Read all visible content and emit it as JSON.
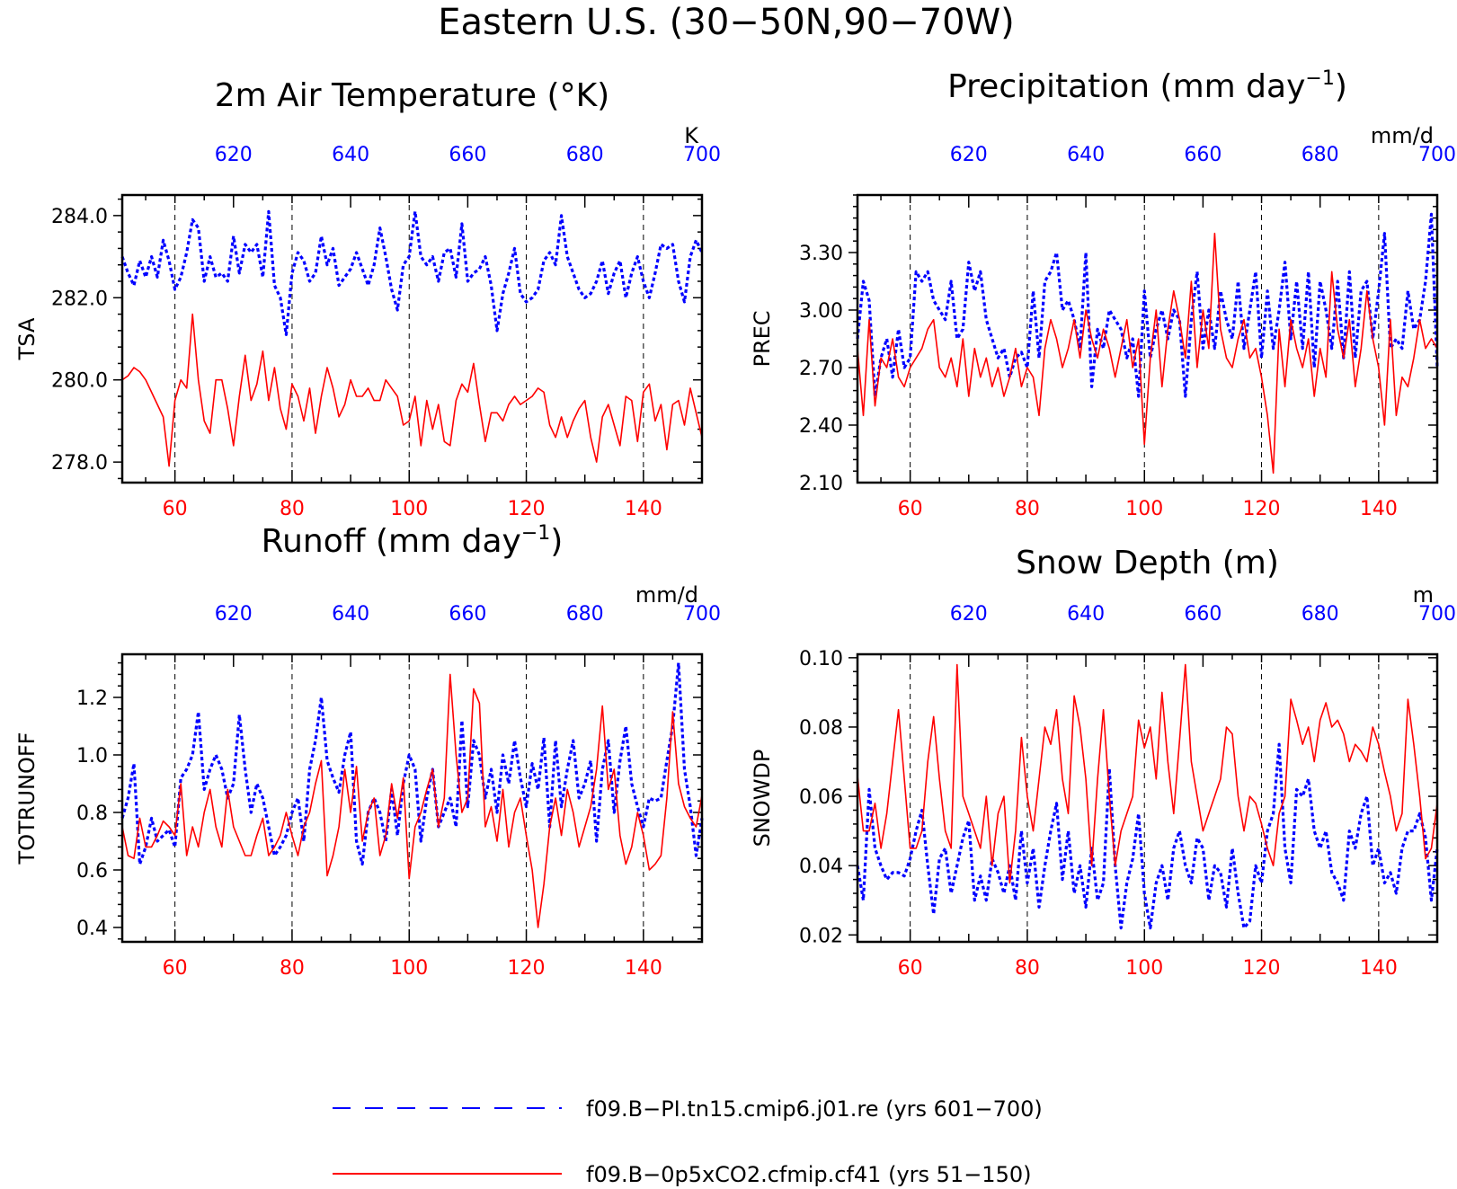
{
  "title": "Eastern U.S. (30−50N,90−70W)",
  "legend": {
    "placement": "bottom",
    "entries": [
      {
        "label": "f09.B−PI.tn15.cmip6.j01.re (yrs 601−700)",
        "color": "#0000ff",
        "style": "dashed"
      },
      {
        "label": "f09.B−0p5xCO2.cfmip.cf41 (yrs 51−150)",
        "color": "#ff0000",
        "style": "solid"
      }
    ]
  },
  "colors": {
    "series_pi": "#0000ff",
    "series_co2": "#ff0000",
    "axis": "#000000"
  },
  "chart_data": [
    {
      "type": "line",
      "title": "2m Air Temperature (°K)",
      "title_main": "2m Air Temperature (°K)",
      "title_sup": "",
      "title_tail": "",
      "ylabel": "TSA",
      "units": "K",
      "ylim": [
        277.5,
        284.5
      ],
      "yticks": [
        278.0,
        280.0,
        282.0,
        284.0
      ],
      "ytick_labels": [
        "278.0",
        "280.0",
        "282.0",
        "284.0"
      ],
      "x_bottom": {
        "range": [
          51,
          150
        ],
        "ticks": [
          60,
          80,
          100,
          120,
          140
        ],
        "color": "#ff0000"
      },
      "x_top": {
        "range": [
          601,
          700
        ],
        "ticks": [
          620,
          640,
          660,
          680,
          700
        ],
        "color": "#0000ff"
      },
      "grid": "dashed vertical",
      "series": [
        {
          "values": [
            283.0,
            282.6,
            282.3,
            282.9,
            282.5,
            283.0,
            282.5,
            283.4,
            282.9,
            282.2,
            282.5,
            283.1,
            283.9,
            283.7,
            282.4,
            283.0,
            282.5,
            282.6,
            282.4,
            283.5,
            282.6,
            283.3,
            283.1,
            283.3,
            282.5,
            284.1,
            282.3,
            282.0,
            281.1,
            282.6,
            283.1,
            282.9,
            282.4,
            282.6,
            283.5,
            282.8,
            283.2,
            282.3,
            282.5,
            282.7,
            283.1,
            282.7,
            282.3,
            282.8,
            283.7,
            283.0,
            282.2,
            281.7,
            282.8,
            283.0,
            284.1,
            283.0,
            282.8,
            283.0,
            282.4,
            283.1,
            283.2,
            282.5,
            283.8,
            282.4,
            282.6,
            282.7,
            283.0,
            282.3,
            281.2,
            282.1,
            282.6,
            283.2,
            282.1,
            281.9,
            282.0,
            282.2,
            282.9,
            283.1,
            282.8,
            284.0,
            283.0,
            282.6,
            282.2,
            282.0,
            282.1,
            282.4,
            282.9,
            282.1,
            282.6,
            282.9,
            282.0,
            282.6,
            283.0,
            282.4,
            282.0,
            282.6,
            283.3,
            283.2,
            283.3,
            282.4,
            281.9,
            283.0,
            283.4,
            283.1
          ]
        },
        {
          "values": [
            280.0,
            280.1,
            280.3,
            280.2,
            280.0,
            279.7,
            279.4,
            279.1,
            277.9,
            279.5,
            280.0,
            279.8,
            281.6,
            280.0,
            279.0,
            278.7,
            280.0,
            280.0,
            279.3,
            278.4,
            279.6,
            280.6,
            279.5,
            279.9,
            280.7,
            279.5,
            280.3,
            279.3,
            278.8,
            279.9,
            279.6,
            279.0,
            279.8,
            278.7,
            279.6,
            280.3,
            279.8,
            279.1,
            279.4,
            280.0,
            279.6,
            279.6,
            279.8,
            279.5,
            279.5,
            280.0,
            279.8,
            279.6,
            278.9,
            279.0,
            279.6,
            278.4,
            279.5,
            278.8,
            279.4,
            278.5,
            278.4,
            279.5,
            279.9,
            279.7,
            280.4,
            279.4,
            278.5,
            279.2,
            279.2,
            279.0,
            279.4,
            279.6,
            279.4,
            279.5,
            279.6,
            279.8,
            279.7,
            278.9,
            278.6,
            279.1,
            278.6,
            279.0,
            279.3,
            279.5,
            278.6,
            278.0,
            279.1,
            279.4,
            278.9,
            278.4,
            279.6,
            279.5,
            278.5,
            279.7,
            279.9,
            279.0,
            279.4,
            278.3,
            279.4,
            279.5,
            278.9,
            279.8,
            279.2,
            278.6
          ]
        }
      ]
    },
    {
      "type": "line",
      "title": "Precipitation (mm day⁻¹)",
      "title_main": "Precipitation (mm day",
      "title_sup": "−1",
      "title_tail": ")",
      "ylabel": "PREC",
      "units": "mm/d",
      "ylim": [
        2.1,
        3.6
      ],
      "yticks": [
        2.1,
        2.4,
        2.7,
        3.0,
        3.3
      ],
      "ytick_labels": [
        "2.10",
        "2.40",
        "2.70",
        "3.00",
        "3.30"
      ],
      "x_bottom": {
        "range": [
          51,
          150
        ],
        "ticks": [
          60,
          80,
          100,
          120,
          140
        ],
        "color": "#ff0000"
      },
      "x_top": {
        "range": [
          601,
          700
        ],
        "ticks": [
          620,
          640,
          660,
          680,
          700
        ],
        "color": "#0000ff"
      },
      "grid": "dashed vertical",
      "series": [
        {
          "values": [
            2.85,
            3.15,
            3.05,
            2.55,
            2.75,
            2.85,
            2.65,
            2.9,
            2.7,
            2.75,
            3.2,
            3.15,
            3.2,
            3.05,
            3.0,
            2.95,
            3.15,
            2.85,
            2.9,
            3.25,
            3.1,
            3.2,
            2.95,
            2.85,
            2.75,
            2.8,
            2.65,
            2.75,
            2.78,
            2.7,
            3.1,
            2.75,
            3.15,
            3.2,
            3.3,
            3.0,
            3.05,
            2.95,
            2.8,
            3.3,
            2.6,
            2.9,
            2.8,
            3.0,
            2.95,
            2.9,
            2.75,
            2.85,
            2.55,
            3.1,
            2.75,
            2.9,
            3.0,
            2.85,
            3.0,
            2.95,
            2.55,
            2.95,
            3.2,
            2.8,
            3.0,
            2.8,
            3.1,
            2.95,
            2.85,
            3.15,
            2.8,
            3.0,
            3.2,
            2.75,
            3.1,
            2.8,
            3.0,
            3.25,
            2.85,
            3.15,
            2.8,
            3.2,
            2.7,
            3.15,
            3.0,
            2.8,
            3.15,
            2.75,
            3.2,
            2.75,
            3.1,
            3.15,
            2.85,
            3.1,
            3.4,
            2.8,
            2.85,
            2.8,
            3.1,
            2.9,
            2.95,
            3.15,
            3.5,
            2.7
          ]
        },
        {
          "values": [
            2.8,
            2.45,
            2.95,
            2.5,
            2.75,
            2.7,
            2.85,
            2.65,
            2.6,
            2.7,
            2.75,
            2.8,
            2.9,
            2.95,
            2.7,
            2.65,
            2.75,
            2.6,
            2.85,
            2.55,
            2.8,
            2.65,
            2.75,
            2.6,
            2.7,
            2.55,
            2.65,
            2.8,
            2.6,
            2.7,
            2.65,
            2.45,
            2.8,
            2.95,
            2.85,
            2.7,
            2.8,
            2.95,
            2.75,
            3.0,
            2.85,
            2.75,
            2.9,
            2.8,
            2.65,
            2.8,
            2.95,
            2.7,
            2.85,
            2.3,
            2.75,
            3.0,
            2.6,
            2.9,
            3.1,
            2.95,
            2.75,
            3.15,
            2.7,
            3.0,
            2.8,
            3.4,
            2.9,
            2.75,
            2.7,
            2.85,
            2.95,
            2.75,
            2.8,
            2.65,
            2.45,
            2.15,
            2.9,
            2.6,
            2.95,
            2.8,
            2.7,
            2.85,
            2.55,
            2.8,
            2.65,
            3.2,
            2.9,
            2.75,
            2.95,
            2.6,
            2.8,
            3.1,
            2.85,
            2.7,
            2.4,
            2.95,
            2.45,
            2.65,
            2.6,
            2.75,
            2.95,
            2.8,
            2.85,
            2.8
          ]
        }
      ]
    },
    {
      "type": "line",
      "title": "Runoff (mm day⁻¹)",
      "title_main": "Runoff (mm day",
      "title_sup": "−1",
      "title_tail": ")",
      "ylabel": "TOTRUNOFF",
      "units": "mm/d",
      "ylim": [
        0.35,
        1.35
      ],
      "yticks": [
        0.4,
        0.6,
        0.8,
        1.0,
        1.2
      ],
      "ytick_labels": [
        "0.4",
        "0.6",
        "0.8",
        "1.0",
        "1.2"
      ],
      "x_bottom": {
        "range": [
          51,
          150
        ],
        "ticks": [
          60,
          80,
          100,
          120,
          140
        ],
        "color": "#ff0000"
      },
      "x_top": {
        "range": [
          601,
          700
        ],
        "ticks": [
          620,
          640,
          660,
          680,
          700
        ],
        "color": "#0000ff"
      },
      "grid": "dashed vertical",
      "series": [
        {
          "values": [
            0.78,
            0.85,
            0.97,
            0.62,
            0.68,
            0.78,
            0.7,
            0.72,
            0.74,
            0.68,
            0.92,
            0.95,
            1.0,
            1.15,
            0.88,
            0.95,
            1.0,
            0.95,
            0.85,
            0.9,
            1.14,
            0.95,
            0.8,
            0.9,
            0.85,
            0.75,
            0.65,
            0.68,
            0.72,
            0.8,
            0.85,
            0.7,
            0.95,
            1.05,
            1.2,
            0.98,
            0.92,
            0.87,
            1.0,
            1.08,
            0.7,
            0.62,
            0.8,
            0.85,
            0.8,
            0.7,
            0.88,
            0.72,
            0.9,
            1.0,
            0.95,
            0.7,
            0.85,
            0.95,
            0.75,
            0.8,
            0.85,
            0.75,
            1.12,
            0.82,
            1.05,
            1.0,
            0.85,
            0.95,
            0.8,
            1.0,
            0.9,
            1.05,
            0.92,
            0.82,
            0.97,
            0.88,
            1.06,
            0.75,
            1.05,
            0.82,
            0.95,
            1.05,
            0.85,
            0.9,
            0.98,
            0.7,
            0.95,
            1.05,
            0.8,
            0.98,
            1.1,
            0.9,
            0.82,
            0.75,
            0.85,
            0.84,
            0.85,
            0.98,
            1.1,
            1.32,
            0.95,
            0.82,
            0.65,
            0.78
          ]
        },
        {
          "values": [
            0.75,
            0.65,
            0.64,
            0.78,
            0.68,
            0.68,
            0.72,
            0.77,
            0.75,
            0.72,
            0.9,
            0.65,
            0.75,
            0.68,
            0.8,
            0.88,
            0.75,
            0.68,
            0.88,
            0.75,
            0.7,
            0.65,
            0.65,
            0.72,
            0.78,
            0.65,
            0.68,
            0.72,
            0.8,
            0.72,
            0.65,
            0.75,
            0.8,
            0.9,
            0.98,
            0.58,
            0.65,
            0.75,
            0.95,
            0.8,
            0.96,
            0.7,
            0.8,
            0.85,
            0.65,
            0.72,
            0.9,
            0.78,
            0.92,
            0.57,
            0.75,
            0.8,
            0.88,
            0.95,
            0.75,
            0.85,
            1.28,
            1.0,
            0.8,
            0.85,
            1.23,
            1.18,
            0.75,
            0.82,
            0.7,
            0.88,
            0.68,
            0.8,
            0.85,
            0.72,
            0.6,
            0.4,
            0.55,
            0.75,
            0.85,
            0.72,
            0.88,
            0.8,
            0.68,
            0.75,
            0.82,
            0.95,
            1.17,
            0.88,
            0.95,
            0.72,
            0.62,
            0.68,
            0.8,
            0.72,
            0.6,
            0.62,
            0.65,
            0.85,
            1.15,
            0.9,
            0.82,
            0.78,
            0.75,
            0.86
          ]
        }
      ]
    },
    {
      "type": "line",
      "title": "Snow Depth (m)",
      "title_main": "Snow Depth (m)",
      "title_sup": "",
      "title_tail": "",
      "ylabel": "SNOWDP",
      "units": "m",
      "ylim": [
        0.018,
        0.101
      ],
      "yticks": [
        0.02,
        0.04,
        0.06,
        0.08,
        0.1
      ],
      "ytick_labels": [
        "0.02",
        "0.04",
        "0.06",
        "0.08",
        "0.10"
      ],
      "x_bottom": {
        "range": [
          51,
          150
        ],
        "ticks": [
          60,
          80,
          100,
          120,
          140
        ],
        "color": "#ff0000"
      },
      "x_top": {
        "range": [
          601,
          700
        ],
        "ticks": [
          620,
          640,
          660,
          680,
          700
        ],
        "color": "#0000ff"
      },
      "grid": "dashed vertical",
      "series": [
        {
          "values": [
            0.04,
            0.03,
            0.062,
            0.045,
            0.04,
            0.036,
            0.038,
            0.038,
            0.037,
            0.042,
            0.05,
            0.056,
            0.04,
            0.026,
            0.042,
            0.045,
            0.032,
            0.04,
            0.048,
            0.053,
            0.03,
            0.037,
            0.03,
            0.042,
            0.038,
            0.032,
            0.04,
            0.03,
            0.05,
            0.035,
            0.045,
            0.028,
            0.04,
            0.05,
            0.058,
            0.036,
            0.05,
            0.032,
            0.04,
            0.028,
            0.045,
            0.03,
            0.035,
            0.068,
            0.04,
            0.022,
            0.035,
            0.042,
            0.055,
            0.032,
            0.022,
            0.035,
            0.04,
            0.03,
            0.045,
            0.05,
            0.04,
            0.035,
            0.048,
            0.045,
            0.03,
            0.04,
            0.038,
            0.028,
            0.045,
            0.032,
            0.022,
            0.024,
            0.04,
            0.035,
            0.05,
            0.055,
            0.075,
            0.045,
            0.035,
            0.062,
            0.06,
            0.065,
            0.05,
            0.045,
            0.05,
            0.038,
            0.035,
            0.03,
            0.05,
            0.045,
            0.055,
            0.06,
            0.04,
            0.045,
            0.035,
            0.038,
            0.032,
            0.045,
            0.05,
            0.05,
            0.055,
            0.048,
            0.03,
            0.045
          ]
        },
        {
          "values": [
            0.066,
            0.05,
            0.05,
            0.058,
            0.045,
            0.055,
            0.07,
            0.085,
            0.065,
            0.045,
            0.045,
            0.05,
            0.07,
            0.083,
            0.065,
            0.05,
            0.045,
            0.098,
            0.06,
            0.055,
            0.05,
            0.045,
            0.06,
            0.04,
            0.055,
            0.06,
            0.035,
            0.05,
            0.077,
            0.06,
            0.05,
            0.065,
            0.08,
            0.075,
            0.085,
            0.065,
            0.055,
            0.089,
            0.08,
            0.065,
            0.04,
            0.065,
            0.085,
            0.06,
            0.04,
            0.05,
            0.055,
            0.06,
            0.082,
            0.074,
            0.08,
            0.065,
            0.09,
            0.07,
            0.055,
            0.076,
            0.098,
            0.07,
            0.06,
            0.05,
            0.055,
            0.06,
            0.065,
            0.08,
            0.078,
            0.06,
            0.05,
            0.06,
            0.058,
            0.052,
            0.045,
            0.04,
            0.055,
            0.06,
            0.088,
            0.082,
            0.075,
            0.08,
            0.07,
            0.082,
            0.087,
            0.08,
            0.082,
            0.078,
            0.07,
            0.075,
            0.073,
            0.07,
            0.08,
            0.075,
            0.067,
            0.06,
            0.05,
            0.055,
            0.088,
            0.075,
            0.06,
            0.042,
            0.045,
            0.058
          ]
        }
      ]
    }
  ]
}
